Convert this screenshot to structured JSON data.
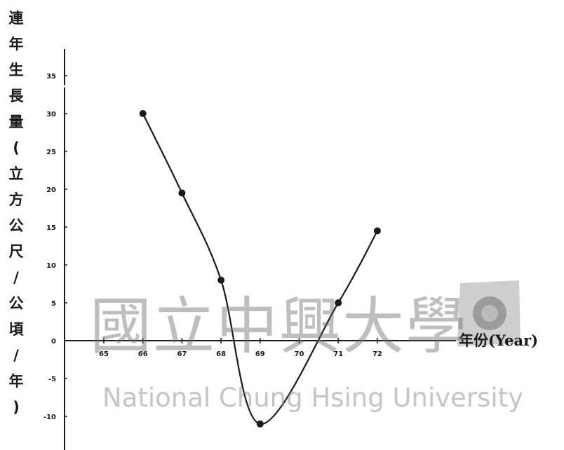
{
  "chart_data": {
    "type": "line",
    "ylabel": "連年生長量(立方公尺/公頃/年)",
    "xlabel": "年份(Year)",
    "categories": [
      "65",
      "66",
      "67",
      "68",
      "69",
      "70",
      "71",
      "72"
    ],
    "points": [
      {
        "x": "66",
        "y": 30
      },
      {
        "x": "67",
        "y": 19.5
      },
      {
        "x": "68",
        "y": 8
      },
      {
        "x": "69",
        "y": -11
      },
      {
        "x": "71",
        "y": 5
      },
      {
        "x": "72",
        "y": 14.5
      }
    ],
    "yticks": [
      "35",
      "30",
      "25",
      "20",
      "15",
      "10",
      "5",
      "0",
      "-5",
      "-10"
    ],
    "ylim": [
      -13,
      38
    ],
    "grid": false,
    "line_color": "#1a1a1a"
  },
  "watermark": {
    "chinese": "國立中興大學",
    "english": "National Chung Hsing University"
  }
}
